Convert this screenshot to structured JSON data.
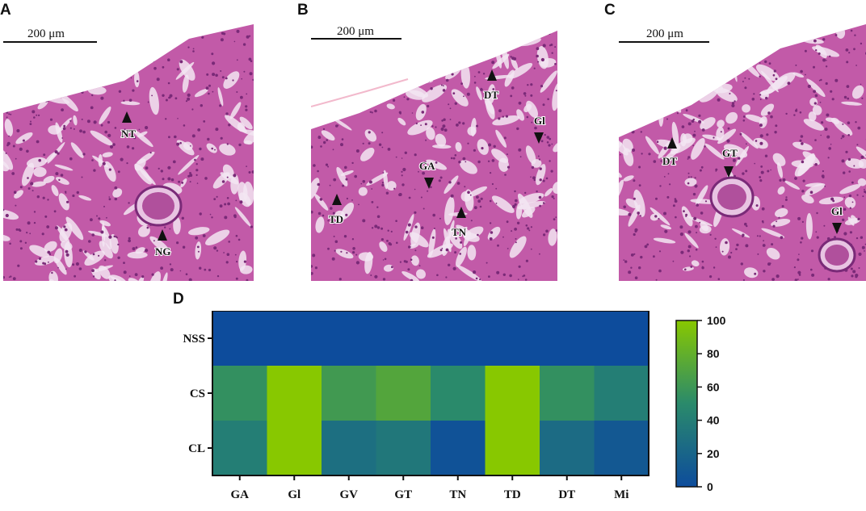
{
  "figure": {
    "panel_labels": [
      "A",
      "B",
      "C",
      "D"
    ],
    "scale_bar_label": "200 μm",
    "panels": [
      {
        "id": "A",
        "markers": [
          "NT",
          "NG"
        ]
      },
      {
        "id": "B",
        "markers": [
          "DT",
          "Gl",
          "GA",
          "TD",
          "TN"
        ]
      },
      {
        "id": "C",
        "markers": [
          "DT",
          "GT",
          "Gl"
        ]
      }
    ]
  },
  "colors": {
    "stain_background": "#c25aa8",
    "stain_dark": "#7a2a78",
    "lumen": "#f3e6f2",
    "heat_low": "#0d4c9c",
    "heat_mid": "#2a8a6b",
    "heat_high": "#88c800"
  },
  "chart_data": {
    "type": "heatmap",
    "x_categories": [
      "GA",
      "Gl",
      "GV",
      "GT",
      "TN",
      "TD",
      "DT",
      "Mi"
    ],
    "y_categories": [
      "NSS",
      "CS",
      "CL"
    ],
    "values": [
      [
        0,
        0,
        0,
        0,
        0,
        0,
        0,
        0
      ],
      [
        55,
        100,
        62,
        72,
        50,
        100,
        55,
        40
      ],
      [
        40,
        100,
        28,
        35,
        5,
        100,
        25,
        10
      ]
    ],
    "colorbar": {
      "min": 0,
      "max": 100,
      "ticks": [
        "0",
        "20",
        "40",
        "60",
        "80",
        "100"
      ]
    }
  }
}
